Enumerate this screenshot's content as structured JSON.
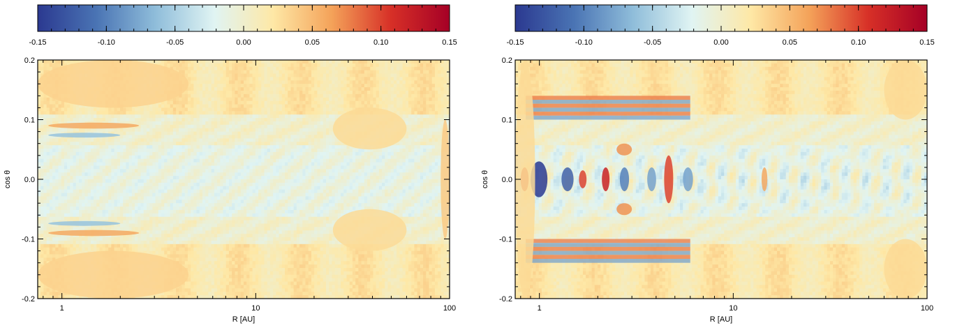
{
  "colorbar": {
    "ticks": [
      -0.15,
      -0.1,
      -0.05,
      0.0,
      0.05,
      0.1,
      0.15
    ],
    "tick_labels": [
      "-0.15",
      "-0.10",
      "-0.05",
      "0.00",
      "0.05",
      "0.10",
      "0.15"
    ],
    "colors": [
      "#2b3990",
      "#4a74b4",
      "#8fbdda",
      "#e0f4f3",
      "#fee8a6",
      "#f4a259",
      "#d73027",
      "#a50026"
    ]
  },
  "chart_data": [
    {
      "type": "heatmap",
      "xlabel": "R [AU]",
      "ylabel": "cos θ",
      "xscale": "log",
      "xlim": [
        0.75,
        100
      ],
      "ylim": [
        -0.2,
        0.2
      ],
      "x_tick_labels": [
        "1",
        "10",
        "100"
      ],
      "x_ticks": [
        1,
        10,
        100
      ],
      "y_tick_labels": [
        "0.2",
        "0.1",
        "0.0",
        "-0.1",
        "-0.2"
      ],
      "y_ticks": [
        0.2,
        0.1,
        0.0,
        -0.1,
        -0.2
      ],
      "value_range": [
        -0.15,
        0.15
      ],
      "pattern": "weak",
      "features": [
        {
          "x": [
            0.75,
            4.5
          ],
          "y": [
            0.12,
            0.2
          ],
          "value": 0.035
        },
        {
          "x": [
            0.75,
            4.5
          ],
          "y": [
            -0.2,
            -0.12
          ],
          "value": 0.035
        },
        {
          "x": [
            0.85,
            2.5
          ],
          "y": [
            0.085,
            0.095
          ],
          "value": 0.06
        },
        {
          "x": [
            0.85,
            2.0
          ],
          "y": [
            0.07,
            0.078
          ],
          "value": -0.06
        },
        {
          "x": [
            0.85,
            2.5
          ],
          "y": [
            -0.095,
            -0.085
          ],
          "value": 0.06
        },
        {
          "x": [
            0.85,
            2.0
          ],
          "y": [
            -0.078,
            -0.07
          ],
          "value": -0.06
        },
        {
          "x": [
            25,
            60
          ],
          "y": [
            0.05,
            0.12
          ],
          "value": 0.03
        },
        {
          "x": [
            25,
            60
          ],
          "y": [
            -0.12,
            -0.05
          ],
          "value": 0.03
        },
        {
          "x": [
            90,
            100
          ],
          "y": [
            -0.1,
            0.1
          ],
          "value": 0.04
        }
      ]
    },
    {
      "type": "heatmap",
      "xlabel": "R [AU]",
      "ylabel": "cos θ",
      "xscale": "log",
      "xlim": [
        0.75,
        100
      ],
      "ylim": [
        -0.2,
        0.2
      ],
      "x_tick_labels": [
        "1",
        "10",
        "100"
      ],
      "x_ticks": [
        1,
        10,
        100
      ],
      "y_tick_labels": [
        "0.2",
        "0.1",
        "0.0",
        "-0.1",
        "-0.2"
      ],
      "y_ticks": [
        0.2,
        0.1,
        0.0,
        -0.1,
        -0.2
      ],
      "value_range": [
        -0.15,
        0.15
      ],
      "pattern": "strong",
      "features": [
        {
          "x": [
            0.9,
            1.1
          ],
          "y": [
            -0.03,
            0.03
          ],
          "value": -0.15
        },
        {
          "x": [
            0.8,
            0.88
          ],
          "y": [
            -0.02,
            0.02
          ],
          "value": 0.1
        },
        {
          "x": [
            1.3,
            1.5
          ],
          "y": [
            -0.02,
            0.02
          ],
          "value": -0.12
        },
        {
          "x": [
            1.6,
            1.75
          ],
          "y": [
            -0.015,
            0.015
          ],
          "value": 0.1
        },
        {
          "x": [
            2.1,
            2.3
          ],
          "y": [
            -0.02,
            0.02
          ],
          "value": 0.12
        },
        {
          "x": [
            2.6,
            2.9
          ],
          "y": [
            -0.02,
            0.02
          ],
          "value": -0.1
        },
        {
          "x": [
            3.6,
            4.0
          ],
          "y": [
            -0.02,
            0.02
          ],
          "value": -0.08
        },
        {
          "x": [
            4.4,
            4.9
          ],
          "y": [
            -0.04,
            0.04
          ],
          "value": 0.1
        },
        {
          "x": [
            5.5,
            6.2
          ],
          "y": [
            -0.02,
            0.02
          ],
          "value": -0.08
        },
        {
          "x": [
            14,
            15
          ],
          "y": [
            -0.02,
            0.02
          ],
          "value": 0.06
        },
        {
          "x": [
            2.5,
            3.0
          ],
          "y": [
            0.04,
            0.06
          ],
          "value": 0.07
        },
        {
          "x": [
            2.5,
            3.0
          ],
          "y": [
            -0.06,
            -0.04
          ],
          "value": 0.07
        },
        {
          "x": [
            0.85,
            6.0
          ],
          "y": [
            0.1,
            0.14
          ],
          "value": 0.08,
          "stripes": true
        },
        {
          "x": [
            0.85,
            6.0
          ],
          "y": [
            -0.14,
            -0.1
          ],
          "value": 0.08,
          "stripes": true
        },
        {
          "x": [
            0.75,
            0.95
          ],
          "y": [
            -0.2,
            0.2
          ],
          "value": 0.03
        },
        {
          "x": [
            60,
            100
          ],
          "y": [
            0.1,
            0.2
          ],
          "value": 0.03
        },
        {
          "x": [
            60,
            100
          ],
          "y": [
            -0.2,
            -0.1
          ],
          "value": 0.03
        }
      ]
    }
  ]
}
